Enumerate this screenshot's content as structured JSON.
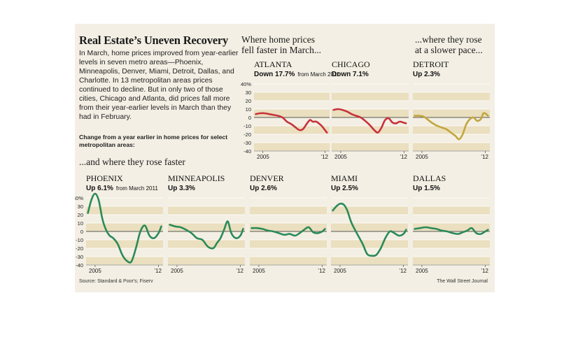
{
  "title": "Real Estate’s Uneven Recovery",
  "description": "In March, home prices improved from year-earlier levels in seven metro areas—Phoenix, Minneapolis, Denver, Miami, Detroit, Dallas, and Charlotte. In 13 metropolitan areas prices continued to decline. But in only two of those cities, Chicago and Atlanta, did prices fall more from their year-earlier levels in March than they had in February.",
  "note": "Change from a year earlier in home prices for select metropolitan areas:",
  "headers": {
    "down": [
      "Where home prices",
      "fell faster in March..."
    ],
    "slow": [
      "...where they rose",
      "at a slower pace..."
    ],
    "faster": "...and where they rose faster"
  },
  "source": "Source: Standard & Poor's; Fiserv",
  "credit": "The Wall Street Journal",
  "colors": {
    "red": "#c8323a",
    "gold": "#c2a63c",
    "green": "#2b8a57",
    "band": "#eadfbf",
    "panel": "#f3efe4"
  },
  "chart_data": [
    {
      "type": "line",
      "city": "ATLANTA",
      "status": "Down 17.7%",
      "status_note": "from March 2011",
      "color": "red",
      "x_tick_labels": [
        "2005",
        "’12"
      ],
      "y_ticks": [
        40,
        30,
        20,
        10,
        0,
        -10,
        -20,
        -30,
        -40
      ],
      "ylim": [
        -40,
        40
      ],
      "x": [
        2004.2,
        2004.7,
        2005.2,
        2005.7,
        2006.2,
        2006.7,
        2007.2,
        2007.7,
        2008.2,
        2008.7,
        2009.1,
        2009.5,
        2009.9,
        2010.3,
        2010.6,
        2011.0,
        2011.4,
        2011.7,
        2011.9,
        2012.2
      ],
      "values": [
        4,
        5,
        5,
        4,
        3,
        2,
        0,
        -5,
        -8,
        -12,
        -15,
        -14,
        -8,
        -3,
        -5,
        -5,
        -8,
        -11,
        -14,
        -18
      ]
    },
    {
      "type": "line",
      "city": "CHICAGO",
      "status": "Down 7.1%",
      "status_note": "",
      "color": "red",
      "x_tick_labels": [
        "2005",
        "’12"
      ],
      "y_ticks": [
        40,
        30,
        20,
        10,
        0,
        -10,
        -20,
        -30,
        -40
      ],
      "ylim": [
        -40,
        40
      ],
      "x": [
        2004.2,
        2004.7,
        2005.2,
        2005.7,
        2006.2,
        2006.7,
        2007.2,
        2007.7,
        2008.2,
        2008.7,
        2009.1,
        2009.5,
        2009.9,
        2010.3,
        2010.7,
        2011.1,
        2011.5,
        2011.9,
        2012.2
      ],
      "values": [
        9,
        10,
        9,
        7,
        4,
        2,
        0,
        -4,
        -9,
        -15,
        -18,
        -12,
        -3,
        -1,
        -6,
        -7,
        -5,
        -6,
        -7
      ]
    },
    {
      "type": "line",
      "city": "DETROIT",
      "status": "Up 2.3%",
      "status_note": "",
      "color": "gold",
      "x_tick_labels": [
        "2005",
        "’12"
      ],
      "y_ticks": [
        40,
        30,
        20,
        10,
        0,
        -10,
        -20,
        -30,
        -40
      ],
      "ylim": [
        -40,
        40
      ],
      "x": [
        2004.2,
        2004.7,
        2005.2,
        2005.7,
        2006.2,
        2006.7,
        2007.2,
        2007.7,
        2008.2,
        2008.7,
        2009.1,
        2009.5,
        2009.9,
        2010.3,
        2010.7,
        2011.1,
        2011.5,
        2011.8,
        2012.1,
        2012.3
      ],
      "values": [
        2,
        2,
        1,
        -3,
        -7,
        -10,
        -12,
        -14,
        -18,
        -22,
        -26,
        -20,
        -8,
        -2,
        0,
        -4,
        -2,
        5,
        4,
        2
      ]
    },
    {
      "type": "line",
      "city": "PHOENIX",
      "status": "Up 6.1%",
      "status_note": "from March 2011",
      "color": "green",
      "x_tick_labels": [
        "2005",
        "’12"
      ],
      "y_ticks": [
        40,
        30,
        20,
        10,
        0,
        -10,
        -20,
        -30,
        -40
      ],
      "ylim": [
        -40,
        40
      ],
      "x": [
        2004.2,
        2004.6,
        2005.0,
        2005.4,
        2005.8,
        2006.2,
        2006.6,
        2007.0,
        2007.5,
        2008.0,
        2008.5,
        2009.0,
        2009.5,
        2010.0,
        2010.5,
        2011.0,
        2011.5,
        2012.0,
        2012.3
      ],
      "values": [
        22,
        38,
        45,
        37,
        15,
        2,
        -5,
        -8,
        -15,
        -28,
        -35,
        -36,
        -20,
        0,
        7,
        -5,
        -8,
        -2,
        6
      ]
    },
    {
      "type": "line",
      "city": "MINNEAPOLIS",
      "status": "Up 3.3%",
      "status_note": "",
      "color": "green",
      "x_tick_labels": [
        "2005",
        "’12"
      ],
      "y_ticks": [
        40,
        30,
        20,
        10,
        0,
        -10,
        -20,
        -30,
        -40
      ],
      "ylim": [
        -40,
        40
      ],
      "x": [
        2004.2,
        2004.8,
        2005.4,
        2006.0,
        2006.6,
        2007.2,
        2007.8,
        2008.4,
        2009.0,
        2009.4,
        2009.8,
        2010.2,
        2010.6,
        2011.0,
        2011.5,
        2012.0,
        2012.3
      ],
      "values": [
        8,
        6,
        5,
        2,
        -2,
        -8,
        -10,
        -18,
        -20,
        -14,
        -8,
        2,
        12,
        -2,
        -8,
        -5,
        3
      ]
    },
    {
      "type": "line",
      "city": "DENVER",
      "status": "Up 2.6%",
      "status_note": "",
      "color": "green",
      "x_tick_labels": [
        "2005",
        "’12"
      ],
      "y_ticks": [
        40,
        30,
        20,
        10,
        0,
        -10,
        -20,
        -30,
        -40
      ],
      "ylim": [
        -40,
        40
      ],
      "x": [
        2004.2,
        2004.8,
        2005.4,
        2006.0,
        2006.6,
        2007.2,
        2007.8,
        2008.4,
        2009.0,
        2009.5,
        2010.0,
        2010.5,
        2011.0,
        2011.5,
        2012.0,
        2012.3
      ],
      "values": [
        4,
        4,
        3,
        1,
        0,
        -2,
        -4,
        -3,
        -5,
        -2,
        2,
        5,
        -1,
        -2,
        0,
        3
      ]
    },
    {
      "type": "line",
      "city": "MIAMI",
      "status": "Up 2.5%",
      "status_note": "",
      "color": "green",
      "x_tick_labels": [
        "2005",
        "’12"
      ],
      "y_ticks": [
        40,
        30,
        20,
        10,
        0,
        -10,
        -20,
        -30,
        -40
      ],
      "ylim": [
        -40,
        40
      ],
      "x": [
        2004.2,
        2004.6,
        2005.0,
        2005.4,
        2005.8,
        2006.2,
        2006.6,
        2007.0,
        2007.5,
        2008.0,
        2008.5,
        2009.0,
        2009.5,
        2010.0,
        2010.5,
        2011.0,
        2011.5,
        2012.0,
        2012.3
      ],
      "values": [
        25,
        30,
        33,
        32,
        25,
        12,
        3,
        -5,
        -15,
        -27,
        -29,
        -28,
        -20,
        -8,
        0,
        -2,
        -5,
        -3,
        2
      ]
    },
    {
      "type": "line",
      "city": "DALLAS",
      "status": "Up 1.5%",
      "status_note": "",
      "color": "green",
      "x_tick_labels": [
        "2005",
        "’12"
      ],
      "y_ticks": [
        40,
        30,
        20,
        10,
        0,
        -10,
        -20,
        -30,
        -40
      ],
      "ylim": [
        -40,
        40
      ],
      "x": [
        2004.2,
        2004.8,
        2005.4,
        2006.0,
        2006.6,
        2007.2,
        2007.8,
        2008.4,
        2009.0,
        2009.5,
        2010.0,
        2010.5,
        2011.0,
        2011.5,
        2012.0,
        2012.3
      ],
      "values": [
        3,
        4,
        5,
        4,
        3,
        1,
        0,
        -2,
        -3,
        -1,
        1,
        4,
        -2,
        -3,
        0,
        2
      ]
    }
  ]
}
